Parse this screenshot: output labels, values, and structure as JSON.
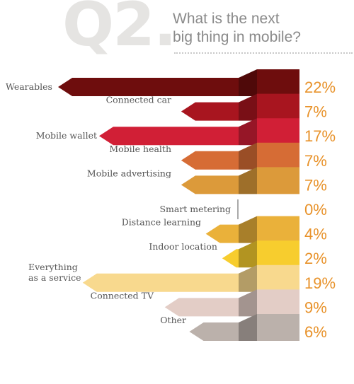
{
  "header": {
    "question_number": "Q2.",
    "question_line1": "What is the next",
    "question_line2": "big thing in mobile?"
  },
  "chart_data": {
    "type": "bar",
    "orientation": "horizontal",
    "unit": "%",
    "categories": [
      "Wearables",
      "Connected car",
      "Mobile wallet",
      "Mobile health",
      "Mobile advertising",
      "Smart metering",
      "Distance learning",
      "Indoor location",
      "Everything as a service",
      "Connected TV",
      "Other"
    ],
    "category_lines": [
      [
        "Wearables"
      ],
      [
        "Connected car"
      ],
      [
        "Mobile wallet"
      ],
      [
        "Mobile health"
      ],
      [
        "Mobile advertising"
      ],
      [
        "Smart metering"
      ],
      [
        "Distance learning"
      ],
      [
        "Indoor location"
      ],
      [
        "Everything",
        "as a service"
      ],
      [
        "Connected TV"
      ],
      [
        "Other"
      ]
    ],
    "values": [
      22,
      7,
      17,
      7,
      7,
      0,
      4,
      2,
      19,
      9,
      6
    ],
    "value_labels": [
      "22%",
      "7%",
      "17%",
      "7%",
      "7%",
      "0%",
      "4%",
      "2%",
      "19%",
      "9%",
      "6%"
    ],
    "colors": [
      "#6e0d0d",
      "#a8151f",
      "#d11f36",
      "#d66c35",
      "#dc9a3a",
      "#aaaaaa",
      "#eab13a",
      "#f7cd2e",
      "#f8d98e",
      "#e3cdc6",
      "#bbb1ab"
    ],
    "value_label_color": "#e8922a"
  }
}
